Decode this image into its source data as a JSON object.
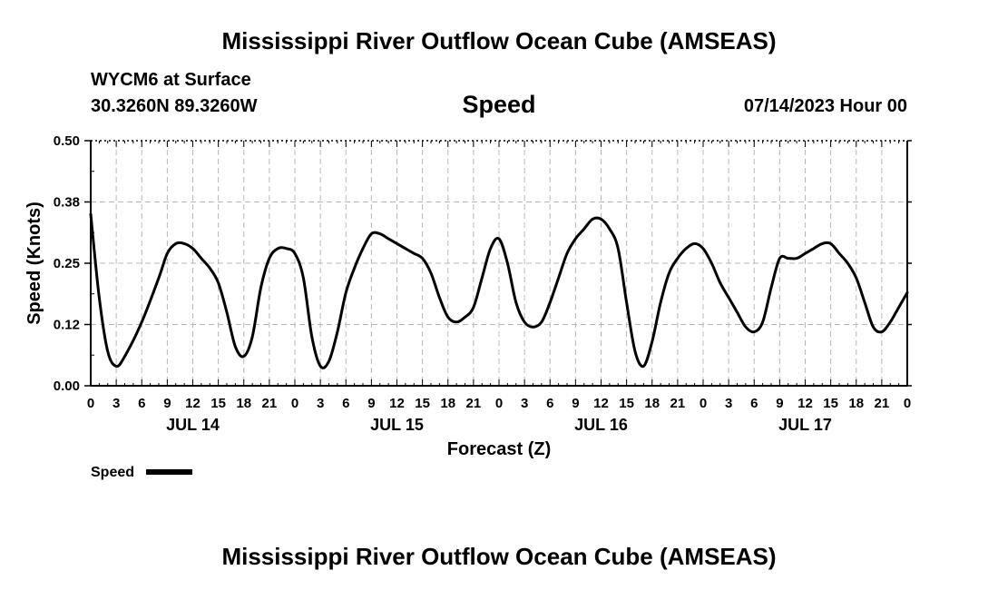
{
  "header": {
    "title": "Mississippi River Outflow Ocean Cube (AMSEAS)",
    "station": "WYCM6 at Surface",
    "coordinates": "30.3260N  89.3260W",
    "variable": "Speed",
    "datetime": "07/14/2023 Hour 00"
  },
  "footer": {
    "title": "Mississippi River Outflow Ocean Cube (AMSEAS)"
  },
  "chart_data": {
    "type": "line",
    "title": "Speed",
    "xlabel": "Forecast (Z)",
    "ylabel": "Speed (Knots)",
    "xlim": [
      0,
      96
    ],
    "ylim": [
      0,
      0.5
    ],
    "yticks": [
      0.0,
      0.125,
      0.25,
      0.375,
      0.5
    ],
    "ytick_labels": [
      "0.00",
      "0.12",
      "0.25",
      "0.38",
      "0.50"
    ],
    "xticks": [
      0,
      3,
      6,
      9,
      12,
      15,
      18,
      21,
      24,
      27,
      30,
      33,
      36,
      39,
      42,
      45,
      48,
      51,
      54,
      57,
      60,
      63,
      66,
      69,
      72,
      75,
      78,
      81,
      84,
      87,
      90,
      93,
      96
    ],
    "xtick_labels": [
      "0",
      "3",
      "6",
      "9",
      "12",
      "15",
      "18",
      "21",
      "0",
      "3",
      "6",
      "9",
      "12",
      "15",
      "18",
      "21",
      "0",
      "3",
      "6",
      "9",
      "12",
      "15",
      "18",
      "21",
      "0",
      "3",
      "6",
      "9",
      "12",
      "15",
      "18",
      "21",
      "0"
    ],
    "date_labels": [
      {
        "x": 12,
        "label": "JUL 14"
      },
      {
        "x": 36,
        "label": "JUL 15"
      },
      {
        "x": 60,
        "label": "JUL 16"
      },
      {
        "x": 84,
        "label": "JUL 17"
      }
    ],
    "grid": true,
    "legend_position": "bottom-left",
    "series": [
      {
        "name": "Speed",
        "color": "#000000",
        "x": [
          0,
          1,
          2,
          3,
          4,
          6,
          8,
          9,
          10,
          11,
          12,
          13,
          14,
          15,
          16,
          17,
          18,
          19,
          20,
          21,
          22,
          23,
          24,
          25,
          26,
          27,
          28,
          29,
          30,
          31,
          32,
          33,
          34,
          35,
          36,
          37,
          38,
          39,
          40,
          41,
          42,
          43,
          44,
          45,
          46,
          47,
          48,
          49,
          50,
          51,
          52,
          53,
          54,
          55,
          56,
          57,
          58,
          59,
          60,
          61,
          62,
          63,
          64,
          65,
          66,
          67,
          68,
          69,
          70,
          71,
          72,
          73,
          74,
          75,
          76,
          77,
          78,
          79,
          80,
          81,
          82,
          83,
          84,
          85,
          86,
          87,
          88,
          89,
          90,
          91,
          92,
          93,
          94,
          95,
          96
        ],
        "y": [
          0.35,
          0.18,
          0.07,
          0.04,
          0.06,
          0.13,
          0.22,
          0.27,
          0.29,
          0.29,
          0.28,
          0.26,
          0.24,
          0.21,
          0.15,
          0.08,
          0.06,
          0.1,
          0.2,
          0.26,
          0.28,
          0.28,
          0.27,
          0.22,
          0.1,
          0.04,
          0.05,
          0.11,
          0.19,
          0.24,
          0.28,
          0.31,
          0.31,
          0.3,
          0.29,
          0.28,
          0.27,
          0.26,
          0.23,
          0.18,
          0.14,
          0.13,
          0.14,
          0.16,
          0.22,
          0.28,
          0.3,
          0.25,
          0.17,
          0.13,
          0.12,
          0.13,
          0.17,
          0.22,
          0.27,
          0.3,
          0.32,
          0.34,
          0.34,
          0.32,
          0.28,
          0.17,
          0.07,
          0.04,
          0.09,
          0.17,
          0.23,
          0.26,
          0.28,
          0.29,
          0.28,
          0.25,
          0.21,
          0.18,
          0.15,
          0.12,
          0.11,
          0.13,
          0.2,
          0.26,
          0.26,
          0.26,
          0.27,
          0.28,
          0.29,
          0.29,
          0.27,
          0.25,
          0.22,
          0.17,
          0.12,
          0.11,
          0.13,
          0.16,
          0.19
        ]
      }
    ]
  }
}
